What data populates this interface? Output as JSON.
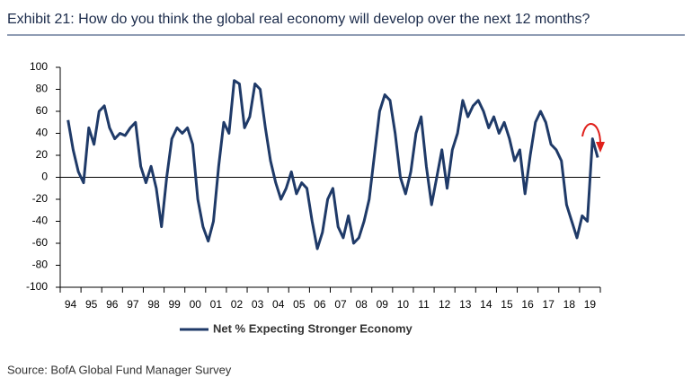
{
  "chart_data": {
    "type": "line",
    "title": "Exhibit 21: How do you think the global real economy will develop over the next 12 months?",
    "source": "Source: BofA Global Fund Manager Survey",
    "categories": [
      "94",
      null,
      null,
      null,
      "95",
      null,
      null,
      null,
      "96",
      null,
      null,
      null,
      "97",
      null,
      null,
      null,
      "98",
      null,
      null,
      null,
      "99",
      null,
      null,
      null,
      "00",
      null,
      null,
      null,
      "01",
      null,
      null,
      null,
      "02",
      null,
      null,
      null,
      "03",
      null,
      null,
      null,
      "04",
      null,
      null,
      null,
      "05",
      null,
      null,
      null,
      "06",
      null,
      null,
      null,
      "07",
      null,
      null,
      null,
      "08",
      null,
      null,
      null,
      "09",
      null,
      null,
      null,
      "10",
      null,
      null,
      null,
      "11",
      null,
      null,
      null,
      "12",
      null,
      null,
      null,
      "13",
      null,
      null,
      null,
      "14",
      null,
      null,
      null,
      "15",
      null,
      null,
      null,
      "16",
      null,
      null,
      null,
      "17",
      null,
      null,
      null,
      "18",
      null,
      null,
      null,
      "19",
      null,
      null,
      null
    ],
    "series": [
      {
        "name": "Net % Expecting Stronger Economy",
        "color": "#1f3a68",
        "values": [
          null,
          52,
          25,
          5,
          -5,
          45,
          30,
          60,
          65,
          45,
          35,
          40,
          38,
          45,
          50,
          10,
          -5,
          10,
          -10,
          -45,
          0,
          35,
          45,
          40,
          45,
          30,
          -20,
          -45,
          -58,
          -40,
          10,
          50,
          40,
          88,
          85,
          45,
          55,
          85,
          80,
          45,
          15,
          -5,
          -20,
          -10,
          5,
          -15,
          -5,
          -10,
          -40,
          -65,
          -50,
          -20,
          -10,
          -45,
          -55,
          -35,
          -60,
          -55,
          -40,
          -20,
          20,
          60,
          75,
          70,
          40,
          0,
          -15,
          5,
          40,
          55,
          10,
          -25,
          0,
          25,
          -10,
          25,
          40,
          70,
          55,
          65,
          70,
          60,
          45,
          55,
          40,
          50,
          35,
          15,
          25,
          -15,
          20,
          50,
          60,
          50,
          30,
          25,
          15,
          -25,
          -40,
          -55,
          -35,
          -40,
          35,
          18
        ]
      }
    ],
    "ylim": [
      -100,
      100
    ],
    "yticks": [
      -100,
      -80,
      -60,
      -40,
      -20,
      0,
      20,
      40,
      60,
      80,
      100
    ]
  }
}
